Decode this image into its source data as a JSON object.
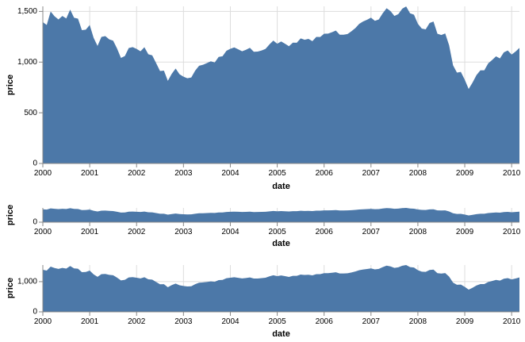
{
  "chart_data": [
    {
      "type": "area",
      "role": "main",
      "xlabel": "date",
      "ylabel": "price",
      "ylim": [
        0,
        1550
      ],
      "yticks": [
        0,
        500,
        1000,
        1500
      ],
      "ytick_labels": [
        "0",
        "500",
        "1,000",
        "1,500"
      ],
      "xlim": [
        "2000-01",
        "2010-03"
      ],
      "xticks": [
        "2000",
        "2001",
        "2002",
        "2003",
        "2004",
        "2005",
        "2006",
        "2007",
        "2008",
        "2009",
        "2010"
      ],
      "grid": true
    },
    {
      "type": "area",
      "role": "overview",
      "xlabel": "date",
      "ylabel": "price",
      "ylim": [
        0,
        1550
      ],
      "yticks": [
        0
      ],
      "ytick_labels": [
        "0"
      ],
      "xlim": [
        "2000-01",
        "2010-03"
      ],
      "xticks": [
        "2000",
        "2001",
        "2002",
        "2003",
        "2004",
        "2005",
        "2006",
        "2007",
        "2008",
        "2009",
        "2010"
      ],
      "grid": true
    },
    {
      "type": "area",
      "role": "detail",
      "xlabel": "date",
      "ylabel": "price",
      "ylim": [
        0,
        1550
      ],
      "yticks": [
        0,
        1000
      ],
      "ytick_labels": [
        "0",
        "1,000"
      ],
      "xlim": [
        "2000-01",
        "2010-03"
      ],
      "xticks": [
        "2000",
        "2001",
        "2002",
        "2003",
        "2004",
        "2005",
        "2006",
        "2007",
        "2008",
        "2009",
        "2010"
      ],
      "grid": true
    }
  ],
  "series": {
    "name": "price",
    "color": "#4c78a8",
    "x": [
      "2000-01",
      "2000-02",
      "2000-03",
      "2000-04",
      "2000-05",
      "2000-06",
      "2000-07",
      "2000-08",
      "2000-09",
      "2000-10",
      "2000-11",
      "2000-12",
      "2001-01",
      "2001-02",
      "2001-03",
      "2001-04",
      "2001-05",
      "2001-06",
      "2001-07",
      "2001-08",
      "2001-09",
      "2001-10",
      "2001-11",
      "2001-12",
      "2002-01",
      "2002-02",
      "2002-03",
      "2002-04",
      "2002-05",
      "2002-06",
      "2002-07",
      "2002-08",
      "2002-09",
      "2002-10",
      "2002-11",
      "2002-12",
      "2003-01",
      "2003-02",
      "2003-03",
      "2003-04",
      "2003-05",
      "2003-06",
      "2003-07",
      "2003-08",
      "2003-09",
      "2003-10",
      "2003-11",
      "2003-12",
      "2004-01",
      "2004-02",
      "2004-03",
      "2004-04",
      "2004-05",
      "2004-06",
      "2004-07",
      "2004-08",
      "2004-09",
      "2004-10",
      "2004-11",
      "2004-12",
      "2005-01",
      "2005-02",
      "2005-03",
      "2005-04",
      "2005-05",
      "2005-06",
      "2005-07",
      "2005-08",
      "2005-09",
      "2005-10",
      "2005-11",
      "2005-12",
      "2006-01",
      "2006-02",
      "2006-03",
      "2006-04",
      "2006-05",
      "2006-06",
      "2006-07",
      "2006-08",
      "2006-09",
      "2006-10",
      "2006-11",
      "2006-12",
      "2007-01",
      "2007-02",
      "2007-03",
      "2007-04",
      "2007-05",
      "2007-06",
      "2007-07",
      "2007-08",
      "2007-09",
      "2007-10",
      "2007-11",
      "2007-12",
      "2008-01",
      "2008-02",
      "2008-03",
      "2008-04",
      "2008-05",
      "2008-06",
      "2008-07",
      "2008-08",
      "2008-09",
      "2008-10",
      "2008-11",
      "2008-12",
      "2009-01",
      "2009-02",
      "2009-03",
      "2009-04",
      "2009-05",
      "2009-06",
      "2009-07",
      "2009-08",
      "2009-09",
      "2009-10",
      "2009-11",
      "2009-12",
      "2010-01",
      "2010-02",
      "2010-03"
    ],
    "y": [
      1394,
      1366,
      1499,
      1452,
      1421,
      1455,
      1431,
      1518,
      1437,
      1429,
      1315,
      1320,
      1366,
      1240,
      1160,
      1249,
      1256,
      1224,
      1211,
      1134,
      1041,
      1060,
      1139,
      1148,
      1130,
      1107,
      1147,
      1077,
      1067,
      990,
      912,
      916,
      815,
      885,
      936,
      880,
      856,
      841,
      848,
      916,
      964,
      974,
      990,
      1008,
      996,
      1051,
      1058,
      1112,
      1131,
      1145,
      1126,
      1107,
      1121,
      1141,
      1102,
      1104,
      1115,
      1130,
      1174,
      1212,
      1181,
      1204,
      1181,
      1157,
      1192,
      1191,
      1234,
      1220,
      1229,
      1207,
      1249,
      1248,
      1280,
      1281,
      1295,
      1311,
      1270,
      1270,
      1277,
      1304,
      1336,
      1378,
      1401,
      1418,
      1438,
      1407,
      1421,
      1482,
      1531,
      1503,
      1455,
      1474,
      1527,
      1549,
      1481,
      1468,
      1378,
      1331,
      1323,
      1386,
      1400,
      1280,
      1267,
      1283,
      1165,
      969,
      896,
      903,
      826,
      735,
      798,
      872,
      919,
      919,
      987,
      1021,
      1057,
      1036,
      1096,
      1115,
      1074,
      1104,
      1140
    ]
  }
}
